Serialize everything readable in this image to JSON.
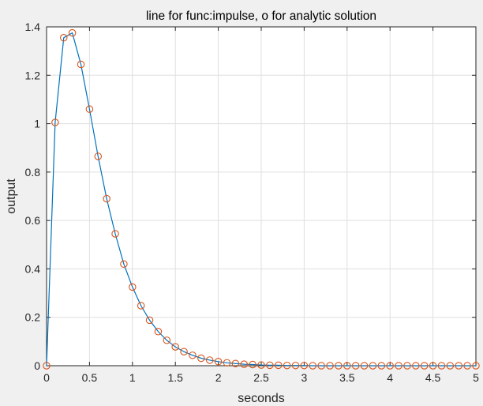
{
  "chart_data": {
    "type": "line",
    "title": "line for func:impulse, o for analytic solution",
    "xlabel": "seconds",
    "ylabel": "output",
    "xlim": [
      0,
      5
    ],
    "ylim": [
      0,
      1.4
    ],
    "xticks": [
      "0",
      "0.5",
      "1",
      "1.5",
      "2",
      "2.5",
      "3",
      "3.5",
      "4",
      "4.5",
      "5"
    ],
    "yticks": [
      "0",
      "0.2",
      "0.4",
      "0.6",
      "0.8",
      "1",
      "1.2",
      "1.4"
    ],
    "grid": true,
    "x": [
      0,
      0.1,
      0.2,
      0.3,
      0.4,
      0.5,
      0.6,
      0.7,
      0.8,
      0.9,
      1.0,
      1.1,
      1.2,
      1.3,
      1.4,
      1.5,
      1.6,
      1.7,
      1.8,
      1.9,
      2.0,
      2.1,
      2.2,
      2.3,
      2.4,
      2.5,
      2.6,
      2.7,
      2.8,
      2.9,
      3.0,
      3.1,
      3.2,
      3.3,
      3.4,
      3.5,
      3.6,
      3.7,
      3.8,
      3.9,
      4.0,
      4.1,
      4.2,
      4.3,
      4.4,
      4.5,
      4.6,
      4.7,
      4.8,
      4.9,
      5.0
    ],
    "series": [
      {
        "style": "line",
        "color": "#0072bd",
        "values": [
          0,
          1.005,
          1.355,
          1.375,
          1.245,
          1.06,
          0.865,
          0.69,
          0.545,
          0.42,
          0.325,
          0.248,
          0.188,
          0.141,
          0.105,
          0.078,
          0.058,
          0.043,
          0.031,
          0.023,
          0.017,
          0.012,
          0.009,
          0.006,
          0.005,
          0.003,
          0.002,
          0.002,
          0.001,
          0.001,
          0.001,
          0,
          0,
          0,
          0,
          0,
          0,
          0,
          0,
          0,
          0,
          0,
          0,
          0,
          0,
          0,
          0,
          0,
          0,
          0,
          0
        ]
      },
      {
        "style": "markers",
        "marker": "o",
        "color": "#d95319",
        "values": [
          0,
          1.005,
          1.355,
          1.375,
          1.245,
          1.06,
          0.865,
          0.69,
          0.545,
          0.42,
          0.325,
          0.248,
          0.188,
          0.141,
          0.105,
          0.078,
          0.058,
          0.043,
          0.031,
          0.023,
          0.017,
          0.012,
          0.009,
          0.006,
          0.005,
          0.003,
          0.002,
          0.002,
          0.001,
          0.001,
          0.001,
          0,
          0,
          0,
          0,
          0,
          0,
          0,
          0,
          0,
          0,
          0,
          0,
          0,
          0,
          0,
          0,
          0,
          0,
          0,
          0
        ]
      }
    ]
  }
}
